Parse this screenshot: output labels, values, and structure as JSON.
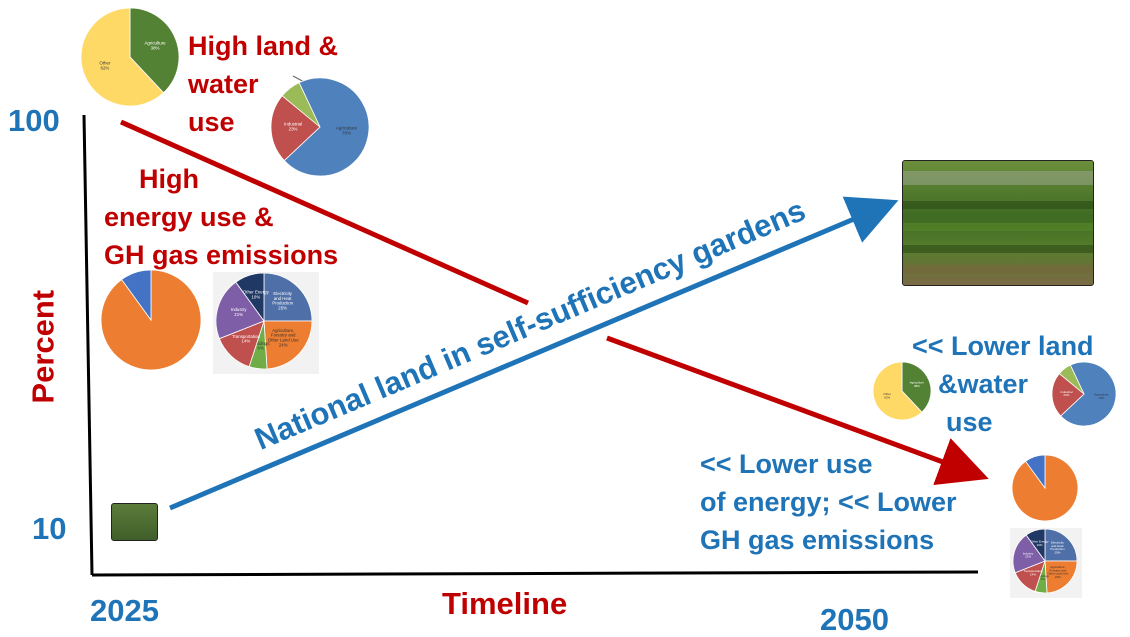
{
  "y_axis": {
    "label": "Percent",
    "tick_top": "100",
    "tick_bottom": "10"
  },
  "x_axis": {
    "label": "Timeline",
    "start": "2025",
    "end": "2050"
  },
  "labels": {
    "high_land_water": [
      "High land &",
      "water",
      "use"
    ],
    "high_energy": [
      "High",
      "energy use &",
      "GH gas emissions"
    ],
    "diagonal": "National land in self-sufficiency gardens",
    "lower_land_water": [
      "<< Lower land",
      "&water",
      "use"
    ],
    "lower_energy": [
      "<< Lower use",
      "of energy; << Lower",
      "GH gas emissions"
    ]
  },
  "pies": {
    "land_top": [
      {
        "label": "Agriculture",
        "pct": "38%",
        "value": 38,
        "color": "#548235"
      },
      {
        "label": "Other",
        "pct": "62%",
        "value": 62,
        "color": "#ffd966"
      }
    ],
    "water_top": [
      {
        "label": "Agriculture",
        "pct": "70%",
        "value": 70,
        "color": "#4f81bd"
      },
      {
        "label": "Industrial",
        "pct": "23%",
        "value": 23,
        "color": "#c0504d"
      },
      {
        "label": "",
        "pct": "",
        "value": 7,
        "color": "#9bbb59"
      }
    ],
    "energy_top": [
      {
        "value": 90,
        "color": "#ed7d31"
      },
      {
        "value": 10,
        "color": "#4472c4"
      }
    ],
    "emissions_top": [
      {
        "label": "Electricity and Heat Production",
        "pct": "25%",
        "value": 25,
        "color": "#4f6fa8"
      },
      {
        "label": "Agriculture, Forestry and Other Land Use",
        "pct": "24%",
        "value": 24,
        "color": "#ed7d31"
      },
      {
        "label": "Buildings",
        "pct": "6%",
        "value": 6,
        "color": "#70ad47"
      },
      {
        "label": "Transportation",
        "pct": "14%",
        "value": 14,
        "color": "#c0504d"
      },
      {
        "label": "Industry",
        "pct": "21%",
        "value": 21,
        "color": "#7f5ea8"
      },
      {
        "label": "Other Energy",
        "pct": "10%",
        "value": 10,
        "color": "#203864"
      }
    ],
    "land_bottom": [
      {
        "label": "Agriculture",
        "pct": "38%",
        "value": 38,
        "color": "#548235"
      },
      {
        "label": "Other",
        "pct": "62%",
        "value": 62,
        "color": "#ffd966"
      }
    ],
    "water_bottom": [
      {
        "label": "Agriculture",
        "pct": "70%",
        "value": 70,
        "color": "#4f81bd"
      },
      {
        "label": "Industrial",
        "pct": "23%",
        "value": 23,
        "color": "#c0504d"
      },
      {
        "label": "",
        "pct": "",
        "value": 7,
        "color": "#9bbb59"
      }
    ],
    "energy_bottom": [
      {
        "value": 90,
        "color": "#ed7d31"
      },
      {
        "value": 10,
        "color": "#4472c4"
      }
    ],
    "emissions_bottom": [
      {
        "label": "Electricity and Heat Production",
        "pct": "25%",
        "value": 25,
        "color": "#4f6fa8"
      },
      {
        "label": "Agriculture, Forestry and Other Land Use",
        "pct": "24%",
        "value": 24,
        "color": "#ed7d31"
      },
      {
        "label": "Buildings",
        "pct": "6%",
        "value": 6,
        "color": "#70ad47"
      },
      {
        "label": "Transportation",
        "pct": "14%",
        "value": 14,
        "color": "#c0504d"
      },
      {
        "label": "Industry",
        "pct": "21%",
        "value": 21,
        "color": "#7f5ea8"
      },
      {
        "label": "Other Energy",
        "pct": "10%",
        "value": 10,
        "color": "#203864"
      }
    ]
  },
  "colors": {
    "red": "#c00000",
    "blue": "#1f74b8",
    "axis": "#000000"
  }
}
